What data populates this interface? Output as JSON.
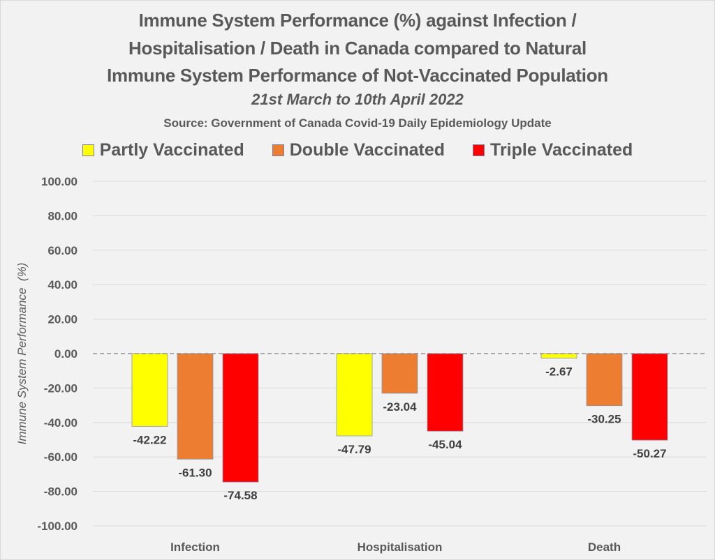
{
  "chart_data": {
    "type": "bar",
    "title_lines": [
      "Immune System Performance (%) against Infection /",
      "Hospitalisation / Death in Canada compared to Natural",
      "Immune System Performance of Not-Vaccinated Population"
    ],
    "subtitle": "21st March to 10th April 2022",
    "source": "Source: Government of Canada Covid-19 Daily Epidemiology Update",
    "xlabel": "",
    "ylabel": "Immune System Performance  (%)",
    "ylim": [
      -100,
      100
    ],
    "yticks": [
      100,
      80,
      60,
      40,
      20,
      0,
      -20,
      -40,
      -60,
      -80,
      -100
    ],
    "ytick_labels": [
      "100.00",
      "80.00",
      "60.00",
      "40.00",
      "20.00",
      "0.00",
      "-20.00",
      "-40.00",
      "-60.00",
      "-80.00",
      "-100.00"
    ],
    "grid": true,
    "zero_line": "dashed",
    "legend_position": "top",
    "categories": [
      "Infection",
      "Hospitalisation",
      "Death"
    ],
    "series": [
      {
        "name": "Partly Vaccinated",
        "color": "#ffff00",
        "values": [
          -42.22,
          -47.79,
          -2.67
        ],
        "labels": [
          "-42.22",
          "-47.79",
          "-2.67"
        ]
      },
      {
        "name": "Double Vaccinated",
        "color": "#ed7d31",
        "values": [
          -61.3,
          -23.04,
          -30.25
        ],
        "labels": [
          "-61.30",
          "-23.04",
          "-30.25"
        ]
      },
      {
        "name": "Triple Vaccinated",
        "color": "#ff0000",
        "values": [
          -74.58,
          -45.04,
          -50.27
        ],
        "labels": [
          "-74.58",
          "-45.04",
          "-50.27"
        ]
      }
    ]
  }
}
